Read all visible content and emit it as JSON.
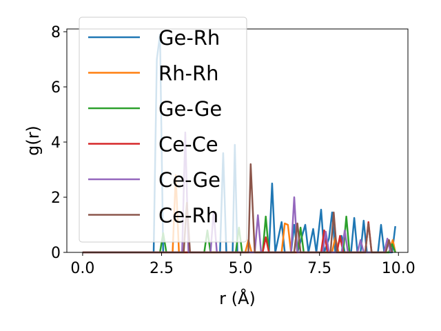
{
  "chart_data": {
    "type": "line",
    "title": "",
    "xlabel": "r (Å)",
    "ylabel": "g(r)",
    "xlim": [
      -0.5,
      10.3
    ],
    "ylim": [
      0,
      8.1
    ],
    "xticks": [
      0.0,
      2.5,
      5.0,
      7.5,
      10.0
    ],
    "xtick_labels": [
      "0.0",
      "2.5",
      "5.0",
      "7.5",
      "10.0"
    ],
    "yticks": [
      0,
      2,
      4,
      6,
      8
    ],
    "ytick_labels": [
      "0",
      "2",
      "4",
      "6",
      "8"
    ],
    "grid": false,
    "legend_position": "top-left",
    "series": [
      {
        "name": "Ge-Rh",
        "color": "#1f77b4",
        "points": [
          [
            0,
            0
          ],
          [
            2.25,
            0
          ],
          [
            2.35,
            7.0
          ],
          [
            2.45,
            7.9
          ],
          [
            2.55,
            0
          ],
          [
            4.35,
            0
          ],
          [
            4.45,
            3.6
          ],
          [
            4.55,
            0
          ],
          [
            4.75,
            0
          ],
          [
            4.82,
            3.9
          ],
          [
            4.9,
            0
          ],
          [
            5.9,
            0
          ],
          [
            6.0,
            2.5
          ],
          [
            6.1,
            0
          ],
          [
            6.3,
            1.1
          ],
          [
            6.4,
            0
          ],
          [
            6.6,
            0
          ],
          [
            6.7,
            1.0
          ],
          [
            6.8,
            0
          ],
          [
            7.05,
            1.0
          ],
          [
            7.15,
            0
          ],
          [
            7.3,
            0.85
          ],
          [
            7.4,
            0
          ],
          [
            7.55,
            1.55
          ],
          [
            7.65,
            0
          ],
          [
            7.8,
            0.5
          ],
          [
            7.9,
            1.45
          ],
          [
            8.0,
            0
          ],
          [
            8.2,
            0.6
          ],
          [
            8.3,
            0
          ],
          [
            8.5,
            0
          ],
          [
            8.6,
            1.25
          ],
          [
            8.7,
            0
          ],
          [
            8.8,
            0
          ],
          [
            8.9,
            1.15
          ],
          [
            9.0,
            0
          ],
          [
            9.35,
            0
          ],
          [
            9.45,
            1.0
          ],
          [
            9.55,
            0
          ],
          [
            9.8,
            0
          ],
          [
            9.9,
            0.95
          ]
        ]
      },
      {
        "name": "Rh-Rh",
        "color": "#ff7f0e",
        "points": [
          [
            0,
            0
          ],
          [
            2.85,
            0
          ],
          [
            2.95,
            2.8
          ],
          [
            3.05,
            0
          ],
          [
            5.15,
            0
          ],
          [
            5.25,
            0.45
          ],
          [
            5.35,
            0
          ],
          [
            6.3,
            0
          ],
          [
            6.4,
            1.05
          ],
          [
            6.5,
            1.0
          ],
          [
            6.6,
            0
          ],
          [
            7.9,
            0
          ],
          [
            8.0,
            0.55
          ],
          [
            8.1,
            0
          ],
          [
            9.7,
            0
          ],
          [
            9.82,
            0.45
          ],
          [
            9.9,
            0
          ]
        ]
      },
      {
        "name": "Ge-Ge",
        "color": "#2ca02c",
        "points": [
          [
            0,
            0
          ],
          [
            2.45,
            0
          ],
          [
            2.55,
            0.7
          ],
          [
            2.65,
            0
          ],
          [
            3.85,
            0
          ],
          [
            3.95,
            0.8
          ],
          [
            4.05,
            0
          ],
          [
            4.85,
            0
          ],
          [
            4.95,
            0.9
          ],
          [
            5.05,
            0
          ],
          [
            5.7,
            0
          ],
          [
            5.8,
            1.3
          ],
          [
            5.9,
            0
          ],
          [
            6.8,
            0
          ],
          [
            6.9,
            0.9
          ],
          [
            7.0,
            0
          ],
          [
            8.25,
            0
          ],
          [
            8.35,
            1.3
          ],
          [
            8.45,
            0
          ],
          [
            9.7,
            0
          ],
          [
            9.8,
            0.3
          ],
          [
            9.9,
            0
          ]
        ]
      },
      {
        "name": "Ce-Ce",
        "color": "#d62728",
        "points": [
          [
            0,
            0
          ],
          [
            5.7,
            0
          ],
          [
            5.8,
            0.55
          ],
          [
            5.9,
            0
          ],
          [
            7.55,
            0
          ],
          [
            7.65,
            0.8
          ],
          [
            7.75,
            0
          ],
          [
            8.05,
            0
          ],
          [
            8.15,
            0.6
          ],
          [
            8.25,
            0
          ],
          [
            8.95,
            0
          ],
          [
            9.05,
            1.1
          ],
          [
            9.15,
            0
          ]
        ]
      },
      {
        "name": "Ce-Ge",
        "color": "#9467bd",
        "points": [
          [
            0,
            0
          ],
          [
            3.15,
            0
          ],
          [
            3.25,
            4.35
          ],
          [
            3.35,
            0
          ],
          [
            4.05,
            0
          ],
          [
            4.15,
            1.5
          ],
          [
            4.25,
            0
          ],
          [
            5.45,
            0
          ],
          [
            5.55,
            1.35
          ],
          [
            5.65,
            0
          ],
          [
            6.6,
            0
          ],
          [
            6.7,
            2.0
          ],
          [
            6.8,
            0
          ],
          [
            7.6,
            0
          ],
          [
            7.7,
            0.75
          ],
          [
            7.8,
            0
          ],
          [
            8.2,
            0
          ],
          [
            8.3,
            0.8
          ],
          [
            8.4,
            0
          ],
          [
            8.7,
            0
          ],
          [
            8.8,
            0.45
          ],
          [
            8.9,
            0
          ],
          [
            9.55,
            0
          ],
          [
            9.65,
            0.5
          ],
          [
            9.75,
            0
          ]
        ]
      },
      {
        "name": "Ce-Rh",
        "color": "#8c564b",
        "points": [
          [
            0,
            0
          ],
          [
            3.2,
            0
          ],
          [
            3.3,
            1.8
          ],
          [
            3.4,
            0
          ],
          [
            5.25,
            0
          ],
          [
            5.32,
            3.2
          ],
          [
            5.45,
            0
          ],
          [
            6.7,
            0
          ],
          [
            6.8,
            1.05
          ],
          [
            6.9,
            0
          ],
          [
            7.85,
            0
          ],
          [
            7.95,
            1.45
          ],
          [
            8.05,
            0
          ],
          [
            8.95,
            0
          ],
          [
            9.05,
            1.05
          ],
          [
            9.15,
            0
          ],
          [
            9.6,
            0
          ],
          [
            9.7,
            0.45
          ],
          [
            9.8,
            0
          ]
        ]
      }
    ]
  }
}
